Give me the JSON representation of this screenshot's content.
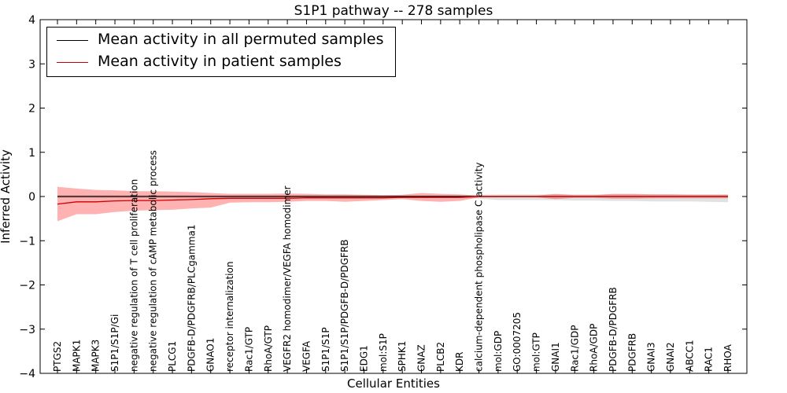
{
  "chart_data": {
    "type": "line",
    "title": "S1P1 pathway -- 278 samples",
    "xlabel": "Cellular Entities",
    "ylabel": "Inferred Activity",
    "ylim": [
      -4,
      4
    ],
    "yticks": [
      -4,
      -3,
      -2,
      -1,
      0,
      1,
      2,
      3,
      4
    ],
    "ytick_labels": [
      "−4",
      "−3",
      "−2",
      "−1",
      "0",
      "1",
      "2",
      "3",
      "4"
    ],
    "categories": [
      "PTGS2",
      "MAPK1",
      "MAPK3",
      "S1P1/S1P/Gi",
      "negative regulation of T cell proliferation",
      "negative regulation of cAMP metabolic process",
      "PLCG1",
      "PDGFB-D/PDGFRB/PLCgamma1",
      "GNAO1",
      "receptor internalization",
      "Rac1/GTP",
      "RhoA/GTP",
      "VEGFR2 homodimer/VEGFA homodimer",
      "VEGFA",
      "S1P1/S1P",
      "S1P1/S1P/PDGFB-D/PDGFRB",
      "EDG1",
      "mol:S1P",
      "SPHK1",
      "GNAZ",
      "PLCB2",
      "KDR",
      "calcium-dependent phospholipase C activity",
      "mol:GDP",
      "GO:0007205",
      "mol:GTP",
      "GNAI1",
      "Rac1/GDP",
      "RhoA/GDP",
      "PDGFB-D/PDGFRB",
      "PDGFRB",
      "GNAI3",
      "GNAI2",
      "ABCC1",
      "RAC1",
      "RHOA"
    ],
    "series": [
      {
        "name": "Mean activity in all permuted samples",
        "color": "#000000",
        "values": [
          0,
          0,
          0,
          0,
          0,
          0,
          0,
          0,
          0,
          0,
          0,
          0,
          0,
          0,
          0,
          0,
          0,
          0,
          0,
          0,
          0,
          0,
          0,
          0,
          0,
          0,
          0,
          0,
          0,
          0,
          0,
          0,
          0,
          0,
          0,
          0
        ],
        "band_upper": [
          0.03,
          0.03,
          0.03,
          0.03,
          0.03,
          0.03,
          0.03,
          0.03,
          0.03,
          0.03,
          0.03,
          0.03,
          0.03,
          0.03,
          0.03,
          0.03,
          0.03,
          0.03,
          0.03,
          0.03,
          0.03,
          0.03,
          0.04,
          0.05,
          0.05,
          0.05,
          0.05,
          0.05,
          0.05,
          0.05,
          0.05,
          0.05,
          0.05,
          0.05,
          0.05,
          0.05
        ],
        "band_lower": [
          -0.03,
          -0.03,
          -0.03,
          -0.03,
          -0.03,
          -0.03,
          -0.03,
          -0.03,
          -0.03,
          -0.03,
          -0.03,
          -0.03,
          -0.03,
          -0.03,
          -0.03,
          -0.03,
          -0.03,
          -0.03,
          -0.03,
          -0.03,
          -0.03,
          -0.03,
          -0.05,
          -0.08,
          -0.08,
          -0.08,
          -0.08,
          -0.09,
          -0.09,
          -0.1,
          -0.1,
          -0.11,
          -0.11,
          -0.11,
          -0.12,
          -0.13
        ]
      },
      {
        "name": "Mean activity in patient samples",
        "color": "#cc0000",
        "values": [
          -0.17,
          -0.12,
          -0.12,
          -0.1,
          -0.09,
          -0.09,
          -0.08,
          -0.07,
          -0.05,
          -0.04,
          -0.04,
          -0.04,
          -0.04,
          -0.03,
          -0.03,
          -0.03,
          -0.03,
          -0.03,
          -0.02,
          -0.02,
          -0.02,
          -0.02,
          0,
          0,
          0,
          0,
          0,
          0,
          0,
          0,
          0,
          0,
          0,
          0,
          0,
          0
        ],
        "band_upper": [
          0.22,
          0.18,
          0.15,
          0.14,
          0.12,
          0.12,
          0.11,
          0.1,
          0.08,
          0.06,
          0.06,
          0.06,
          0.07,
          0.06,
          0.05,
          0.05,
          0.04,
          0.03,
          0.04,
          0.08,
          0.06,
          0.05,
          0.02,
          0.02,
          0.02,
          0.02,
          0.06,
          0.03,
          0.03,
          0.06,
          0.06,
          0.05,
          0.05,
          0.04,
          0.04,
          0.04
        ],
        "band_lower": [
          -0.56,
          -0.4,
          -0.4,
          -0.35,
          -0.32,
          -0.31,
          -0.3,
          -0.27,
          -0.25,
          -0.14,
          -0.13,
          -0.13,
          -0.12,
          -0.1,
          -0.1,
          -0.12,
          -0.1,
          -0.08,
          -0.06,
          -0.1,
          -0.12,
          -0.1,
          -0.02,
          -0.02,
          -0.02,
          -0.02,
          -0.06,
          -0.03,
          -0.03,
          -0.05,
          -0.05,
          -0.04,
          -0.04,
          -0.04,
          -0.04,
          -0.04
        ]
      }
    ],
    "reference_line": {
      "y": 0,
      "style": "dotted"
    },
    "legend": "top-left"
  }
}
